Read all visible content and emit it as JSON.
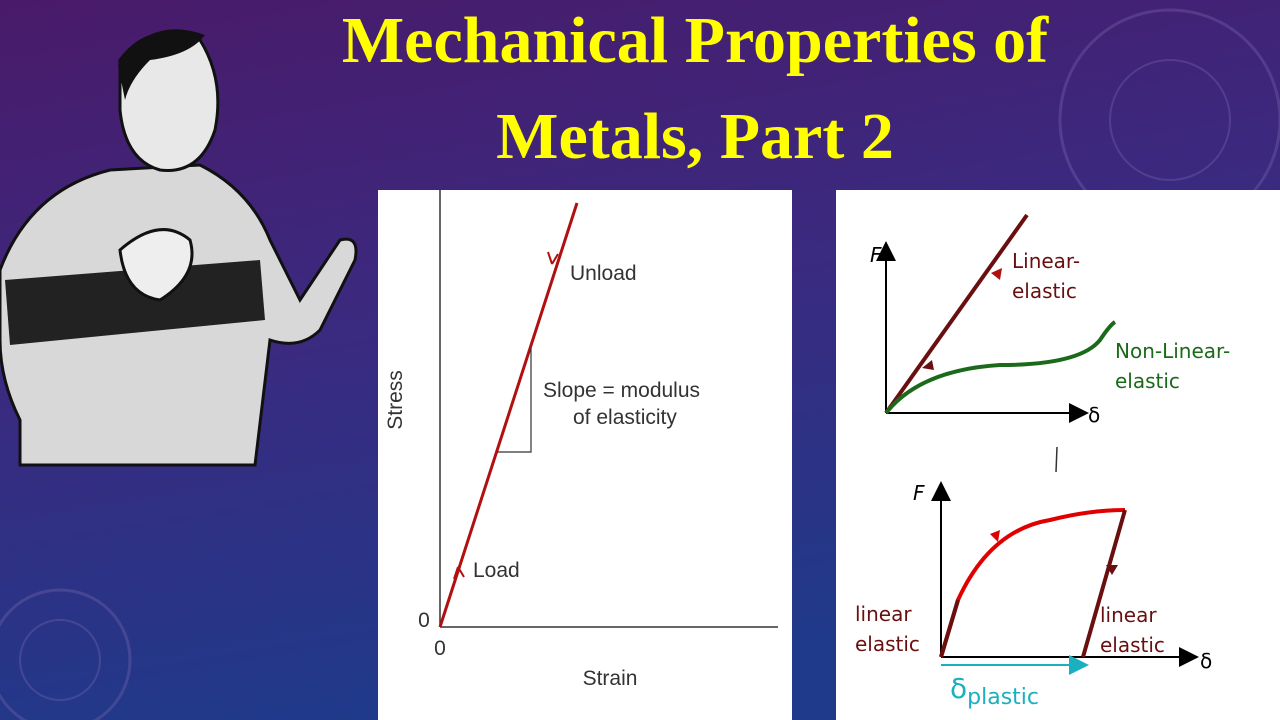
{
  "header": {
    "title_lines": [
      "Mechanical Properties of",
      "Metals, Part 2"
    ]
  },
  "left_diagram": {
    "y_axis_label": "Stress",
    "x_axis_label": "Strain",
    "x_origin": "0",
    "y_origin": "0",
    "unload_label": "Unload",
    "load_label": "Load",
    "slope_label": [
      "Slope = modulus",
      "of elasticity"
    ]
  },
  "right_top_diagram": {
    "y_axis_label": "F",
    "x_axis_label": "δ",
    "linear_label": [
      "Linear-",
      "elastic"
    ],
    "nonlinear_label": [
      "Non-Linear-",
      "elastic"
    ]
  },
  "right_bottom_diagram": {
    "y_axis_label": "F",
    "x_axis_label": "δ",
    "left_label": [
      "linear",
      "elastic"
    ],
    "right_label": [
      "linear",
      "elastic"
    ],
    "plastic_label": {
      "symbol": "δ",
      "subscript": "plastic"
    }
  }
}
